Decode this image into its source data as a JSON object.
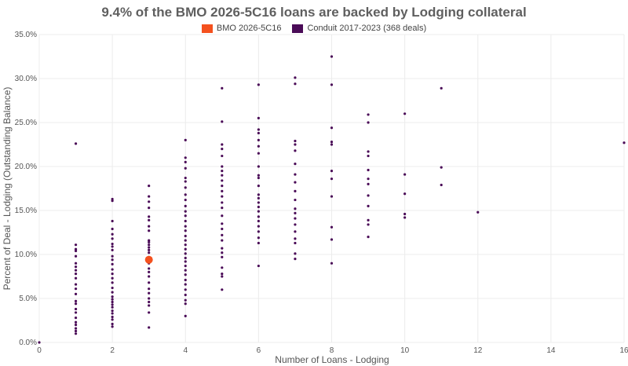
{
  "chart_data": {
    "type": "scatter",
    "title": "9.4% of the BMO 2026-5C16 loans are backed by Lodging collateral",
    "xlabel": "Number of Loans - Lodging",
    "ylabel": "Percent of Deal - Lodging (Outstanding Balance)",
    "xlim": [
      0,
      16
    ],
    "ylim": [
      0,
      35
    ],
    "x_ticks": [
      "0",
      "2",
      "4",
      "6",
      "8",
      "10",
      "12",
      "14",
      "16"
    ],
    "y_ticks": [
      "0.0%",
      "5.0%",
      "10.0%",
      "15.0%",
      "20.0%",
      "25.0%",
      "30.0%",
      "35.0%"
    ],
    "legend_position": "top-center",
    "grid": true,
    "series": [
      {
        "name": "BMO 2026-5C16",
        "color": "#f4511e",
        "points": [
          [
            3,
            9.4
          ]
        ]
      },
      {
        "name": "Conduit 2017-2023 (368 deals)",
        "color": "#4a0b57",
        "points": [
          [
            0,
            0.0
          ],
          [
            1,
            22.6
          ],
          [
            1,
            11.1
          ],
          [
            1,
            10.6
          ],
          [
            1,
            10.4
          ],
          [
            1,
            9.8
          ],
          [
            1,
            9.0
          ],
          [
            1,
            8.6
          ],
          [
            1,
            8.2
          ],
          [
            1,
            7.8
          ],
          [
            1,
            7.3
          ],
          [
            1,
            6.6
          ],
          [
            1,
            6.1
          ],
          [
            1,
            5.5
          ],
          [
            1,
            4.7
          ],
          [
            1,
            4.4
          ],
          [
            1,
            3.8
          ],
          [
            1,
            3.4
          ],
          [
            1,
            2.8
          ],
          [
            1,
            2.3
          ],
          [
            1,
            2.0
          ],
          [
            1,
            1.6
          ],
          [
            1,
            1.3
          ],
          [
            1,
            1.0
          ],
          [
            2,
            16.3
          ],
          [
            2,
            16.1
          ],
          [
            2,
            13.8
          ],
          [
            2,
            12.9
          ],
          [
            2,
            12.3
          ],
          [
            2,
            11.8
          ],
          [
            2,
            11.2
          ],
          [
            2,
            10.9
          ],
          [
            2,
            10.5
          ],
          [
            2,
            9.8
          ],
          [
            2,
            9.4
          ],
          [
            2,
            8.9
          ],
          [
            2,
            8.3
          ],
          [
            2,
            7.8
          ],
          [
            2,
            7.3
          ],
          [
            2,
            6.8
          ],
          [
            2,
            6.2
          ],
          [
            2,
            5.7
          ],
          [
            2,
            5.2
          ],
          [
            2,
            4.9
          ],
          [
            2,
            4.6
          ],
          [
            2,
            4.3
          ],
          [
            2,
            4.0
          ],
          [
            2,
            3.6
          ],
          [
            2,
            3.3
          ],
          [
            2,
            2.9
          ],
          [
            2,
            2.6
          ],
          [
            2,
            2.1
          ],
          [
            2,
            1.8
          ],
          [
            3,
            17.8
          ],
          [
            3,
            16.6
          ],
          [
            3,
            16.0
          ],
          [
            3,
            15.3
          ],
          [
            3,
            14.3
          ],
          [
            3,
            13.9
          ],
          [
            3,
            13.2
          ],
          [
            3,
            12.7
          ],
          [
            3,
            11.6
          ],
          [
            3,
            11.4
          ],
          [
            3,
            11.1
          ],
          [
            3,
            10.8
          ],
          [
            3,
            10.5
          ],
          [
            3,
            10.2
          ],
          [
            3,
            9.7
          ],
          [
            3,
            9.0
          ],
          [
            3,
            8.4
          ],
          [
            3,
            8.0
          ],
          [
            3,
            7.5
          ],
          [
            3,
            6.8
          ],
          [
            3,
            6.1
          ],
          [
            3,
            5.6
          ],
          [
            3,
            5.0
          ],
          [
            3,
            4.6
          ],
          [
            3,
            4.2
          ],
          [
            3,
            3.4
          ],
          [
            3,
            1.7
          ],
          [
            4,
            23.0
          ],
          [
            4,
            21.0
          ],
          [
            4,
            20.5
          ],
          [
            4,
            19.8
          ],
          [
            4,
            18.7
          ],
          [
            4,
            18.3
          ],
          [
            4,
            17.6
          ],
          [
            4,
            16.8
          ],
          [
            4,
            16.2
          ],
          [
            4,
            15.5
          ],
          [
            4,
            14.9
          ],
          [
            4,
            14.4
          ],
          [
            4,
            13.8
          ],
          [
            4,
            13.2
          ],
          [
            4,
            12.7
          ],
          [
            4,
            12.1
          ],
          [
            4,
            11.6
          ],
          [
            4,
            11.1
          ],
          [
            4,
            10.6
          ],
          [
            4,
            10.1
          ],
          [
            4,
            9.6
          ],
          [
            4,
            9.2
          ],
          [
            4,
            8.7
          ],
          [
            4,
            8.2
          ],
          [
            4,
            7.7
          ],
          [
            4,
            7.1
          ],
          [
            4,
            6.6
          ],
          [
            4,
            6.0
          ],
          [
            4,
            5.4
          ],
          [
            4,
            4.8
          ],
          [
            4,
            4.4
          ],
          [
            4,
            3.0
          ],
          [
            5,
            28.9
          ],
          [
            5,
            25.1
          ],
          [
            5,
            22.5
          ],
          [
            5,
            22.0
          ],
          [
            5,
            21.2
          ],
          [
            5,
            20.0
          ],
          [
            5,
            19.5
          ],
          [
            5,
            19.0
          ],
          [
            5,
            18.4
          ],
          [
            5,
            17.8
          ],
          [
            5,
            17.2
          ],
          [
            5,
            16.6
          ],
          [
            5,
            15.9
          ],
          [
            5,
            15.3
          ],
          [
            5,
            14.4
          ],
          [
            5,
            13.5
          ],
          [
            5,
            12.9
          ],
          [
            5,
            12.2
          ],
          [
            5,
            11.6
          ],
          [
            5,
            10.7
          ],
          [
            5,
            10.2
          ],
          [
            5,
            9.7
          ],
          [
            5,
            8.5
          ],
          [
            5,
            7.8
          ],
          [
            5,
            7.5
          ],
          [
            5,
            6.0
          ],
          [
            6,
            29.3
          ],
          [
            6,
            25.5
          ],
          [
            6,
            24.2
          ],
          [
            6,
            23.8
          ],
          [
            6,
            23.0
          ],
          [
            6,
            22.3
          ],
          [
            6,
            21.5
          ],
          [
            6,
            20.0
          ],
          [
            6,
            19.0
          ],
          [
            6,
            18.7
          ],
          [
            6,
            17.8
          ],
          [
            6,
            16.8
          ],
          [
            6,
            16.4
          ],
          [
            6,
            15.9
          ],
          [
            6,
            15.4
          ],
          [
            6,
            14.9
          ],
          [
            6,
            14.3
          ],
          [
            6,
            13.8
          ],
          [
            6,
            13.2
          ],
          [
            6,
            12.6
          ],
          [
            6,
            11.9
          ],
          [
            6,
            11.3
          ],
          [
            6,
            8.7
          ],
          [
            7,
            30.1
          ],
          [
            7,
            29.4
          ],
          [
            7,
            22.9
          ],
          [
            7,
            22.5
          ],
          [
            7,
            21.8
          ],
          [
            7,
            20.3
          ],
          [
            7,
            19.1
          ],
          [
            7,
            18.2
          ],
          [
            7,
            17.2
          ],
          [
            7,
            16.2
          ],
          [
            7,
            15.2
          ],
          [
            7,
            14.7
          ],
          [
            7,
            14.1
          ],
          [
            7,
            13.4
          ],
          [
            7,
            12.6
          ],
          [
            7,
            11.8
          ],
          [
            7,
            11.3
          ],
          [
            7,
            10.1
          ],
          [
            7,
            9.5
          ],
          [
            8,
            32.5
          ],
          [
            8,
            29.3
          ],
          [
            8,
            24.4
          ],
          [
            8,
            22.8
          ],
          [
            8,
            22.5
          ],
          [
            8,
            19.5
          ],
          [
            8,
            18.6
          ],
          [
            8,
            16.6
          ],
          [
            8,
            13.1
          ],
          [
            8,
            11.7
          ],
          [
            8,
            9.0
          ],
          [
            9,
            25.9
          ],
          [
            9,
            25.0
          ],
          [
            9,
            21.7
          ],
          [
            9,
            21.2
          ],
          [
            9,
            19.6
          ],
          [
            9,
            18.6
          ],
          [
            9,
            18.0
          ],
          [
            9,
            16.7
          ],
          [
            9,
            15.5
          ],
          [
            9,
            13.9
          ],
          [
            9,
            13.4
          ],
          [
            9,
            12.0
          ],
          [
            10,
            26.0
          ],
          [
            10,
            19.1
          ],
          [
            10,
            16.9
          ],
          [
            10,
            14.6
          ],
          [
            10,
            14.2
          ],
          [
            11,
            28.9
          ],
          [
            11,
            19.9
          ],
          [
            11,
            17.9
          ],
          [
            12,
            14.8
          ],
          [
            16,
            22.7
          ]
        ]
      }
    ]
  }
}
